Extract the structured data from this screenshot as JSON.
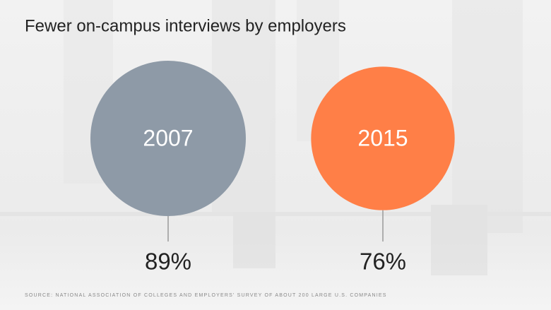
{
  "chart_data": {
    "type": "bubble",
    "title": "Fewer on-campus interviews by employers",
    "categories": [
      "2007",
      "2015"
    ],
    "values": [
      89,
      76
    ],
    "value_labels": [
      "89%",
      "76%"
    ],
    "colors": [
      "#8e9aa7",
      "#ff7f47"
    ],
    "source": "SOURCE: NATIONAL ASSOCIATION OF COLLEGES AND EMPLOYERS' SURVEY OF ABOUT 200 LARGE U.S. COMPANIES"
  }
}
